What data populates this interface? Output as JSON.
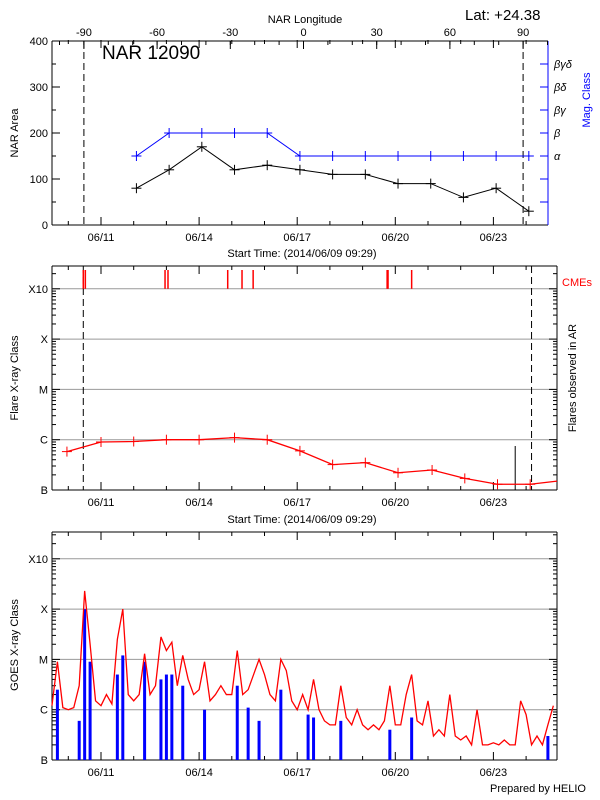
{
  "header": {
    "lat_label": "Lat: +24.38",
    "region_label": "NAR 12090"
  },
  "footer": {
    "credit": "Prepared by HELIO"
  },
  "colors": {
    "area": "#000000",
    "mag_class": "#0000ff",
    "flares": "#ff0000",
    "cme": "#ff0000",
    "goes_long": "#ff0000",
    "goes_short": "#0000ff",
    "grid": "#999999"
  },
  "date_ticks": [
    "06/11",
    "06/14",
    "06/17",
    "06/20",
    "06/23"
  ],
  "chart_data": [
    {
      "type": "line",
      "xlabel": "Start Time: (2014/06/09 09:29)",
      "ylabel": "NAR Area",
      "y2label": "Mag. Class",
      "top_xlabel": "NAR Longitude",
      "top_ticks": [
        -90,
        -60,
        -30,
        0,
        30,
        60,
        90
      ],
      "yticks": [
        0,
        100,
        200,
        300,
        400
      ],
      "ylim": [
        0,
        400
      ],
      "xlim": [
        "2014-06-09T12:00",
        "2014-06-24T16:00"
      ],
      "mag_classes": [
        "α",
        "β",
        "βγ",
        "βδ",
        "βγδ"
      ],
      "limb_markers_longitude": [
        -90,
        90
      ],
      "series": [
        {
          "name": "NAR Area",
          "x": [
            "2014-06-12T02:00",
            "2014-06-13T02:00",
            "2014-06-14T02:00",
            "2014-06-15T02:00",
            "2014-06-16T02:00",
            "2014-06-17T02:00",
            "2014-06-18T02:00",
            "2014-06-19T02:00",
            "2014-06-20T02:00",
            "2014-06-21T02:00",
            "2014-06-22T02:00",
            "2014-06-23T02:00",
            "2014-06-24T02:00"
          ],
          "values": [
            80,
            120,
            170,
            120,
            130,
            120,
            110,
            110,
            90,
            90,
            60,
            80,
            30
          ]
        },
        {
          "name": "Mag. Class",
          "x": [
            "2014-06-12T02:00",
            "2014-06-13T02:00",
            "2014-06-14T02:00",
            "2014-06-15T02:00",
            "2014-06-16T02:00",
            "2014-06-17T02:00",
            "2014-06-18T02:00",
            "2014-06-19T02:00",
            "2014-06-20T02:00",
            "2014-06-21T02:00",
            "2014-06-22T02:00",
            "2014-06-23T02:00",
            "2014-06-24T02:00"
          ],
          "values": [
            "α",
            "β",
            "β",
            "β",
            "β",
            "α",
            "α",
            "α",
            "α",
            "α",
            "α",
            "α",
            "α"
          ]
        }
      ]
    },
    {
      "type": "line",
      "xlabel": "Start Time: (2014/06/09 09:29)",
      "ylabel": "Flare X-ray Class",
      "y2label": "Flares observed in AR",
      "cme_label": "CMEs",
      "yticks": [
        "B",
        "C",
        "M",
        "X",
        "X10"
      ],
      "yscale": "log",
      "xlim": [
        "2014-06-09T12:00",
        "2014-06-24T22:30"
      ],
      "limb_markers": [
        "2014-06-10T11:00",
        "2014-06-24T04:00"
      ],
      "flares": {
        "x": [
          "2014-06-09T23:00",
          "2014-06-11T00:00",
          "2014-06-12T00:00",
          "2014-06-13T00:00",
          "2014-06-14T00:00",
          "2014-06-15T02:00",
          "2014-06-16T02:00",
          "2014-06-17T02:00",
          "2014-06-18T02:00",
          "2014-06-19T02:00",
          "2014-06-20T02:00",
          "2014-06-21T03:00",
          "2014-06-22T03:00",
          "2014-06-23T03:00",
          "2014-06-24T03:00",
          "2014-06-25T03:00"
        ],
        "values": [
          "B5.8",
          "B9.0",
          "B9.2",
          "C1.0",
          "C1.0",
          "C1.1",
          "C1.0",
          "B6.0",
          "B3.2",
          "B3.5",
          "B2.2",
          "B2.5",
          "B1.7",
          "B1.3",
          "B1.3",
          "B1.5"
        ]
      },
      "flare_events": [
        {
          "x": "2014-06-23T16:00",
          "value": "B7.5"
        }
      ],
      "cmes": [
        "2014-06-10T11:00",
        "2014-06-10T12:30",
        "2014-06-12T23:00",
        "2014-06-13T01:10",
        "2014-06-14T21:00",
        "2014-06-15T07:30",
        "2014-06-15T15:40",
        "2014-06-19T18:00",
        "2014-06-19T18:40",
        "2014-06-20T12:00"
      ]
    },
    {
      "type": "line",
      "ylabel": "GOES X-ray Class",
      "yticks": [
        "B",
        "C",
        "M",
        "X",
        "X10"
      ],
      "yscale": "log",
      "xlim": [
        "2014-06-09T12:00",
        "2014-06-24T22:30"
      ],
      "long_channel": {
        "start": "2014-06-09T12:00",
        "step_hours": 4,
        "values": [
          "C1.2",
          "M0.9",
          "C1.1",
          "C1.0",
          "C1.1",
          "C3.0",
          "X2.3",
          "M2",
          "C1.5",
          "C1.2",
          "C2",
          "C1.3",
          "M2.5",
          "X1.0",
          "C2",
          "C1.5",
          "C2",
          "M1.3",
          "C2",
          "C3",
          "M2.8",
          "M1.5",
          "M2.2",
          "C3",
          "M1.2",
          "C4",
          "C2",
          "C2.5",
          "M0.9",
          "C1.5",
          "C2",
          "C3",
          "C2",
          "C2",
          "M1.5",
          "C2",
          "C2.5",
          "C5",
          "M1.0",
          "C5",
          "C2",
          "C1.5",
          "M1.0",
          "C6",
          "C1.5",
          "C1",
          "C2",
          "C1",
          "C4",
          "C1",
          "B6",
          "B5",
          "B5",
          "C3",
          "B7",
          "B5",
          "C1.0",
          "B5",
          "B4",
          "B5",
          "B4",
          "B6",
          "C3",
          "B5",
          "B5",
          "C2",
          "C5",
          "B6",
          "B5",
          "C1.5",
          "B3",
          "B4",
          "B3",
          "C2",
          "B3",
          "B2.5",
          "B3",
          "B2",
          "C1",
          "B2",
          "B2",
          "B2.2",
          "B2",
          "B2.5",
          "B2",
          "B2",
          "C1.5",
          "B8",
          "B2",
          "B3",
          "B2",
          "B5",
          "C1.2"
        ]
      },
      "short_channel_peaks": [
        {
          "x": "2014-06-09T16:00",
          "value": "C2.5"
        },
        {
          "x": "2014-06-10T08:00",
          "value": "B6"
        },
        {
          "x": "2014-06-10T12:00",
          "value": "X1.0"
        },
        {
          "x": "2014-06-10T16:00",
          "value": "M0.9"
        },
        {
          "x": "2014-06-11T12:00",
          "value": "C5"
        },
        {
          "x": "2014-06-11T16:00",
          "value": "M1.2"
        },
        {
          "x": "2014-06-12T08:00",
          "value": "M0.9"
        },
        {
          "x": "2014-06-12T20:00",
          "value": "C4"
        },
        {
          "x": "2014-06-13T00:00",
          "value": "C5"
        },
        {
          "x": "2014-06-13T04:00",
          "value": "M0.5"
        },
        {
          "x": "2014-06-13T12:00",
          "value": "C3"
        },
        {
          "x": "2014-06-14T04:00",
          "value": "C1.0"
        },
        {
          "x": "2014-06-15T04:00",
          "value": "C3"
        },
        {
          "x": "2014-06-15T12:00",
          "value": "C1.1"
        },
        {
          "x": "2014-06-15T20:00",
          "value": "B6"
        },
        {
          "x": "2014-06-16T12:00",
          "value": "C2.5"
        },
        {
          "x": "2014-06-17T08:00",
          "value": "B8"
        },
        {
          "x": "2014-06-17T12:00",
          "value": "B7"
        },
        {
          "x": "2014-06-18T08:00",
          "value": "B6"
        },
        {
          "x": "2014-06-19T20:00",
          "value": "B4"
        },
        {
          "x": "2014-06-20T12:00",
          "value": "B7"
        },
        {
          "x": "2014-06-24T16:00",
          "value": "B3"
        }
      ]
    }
  ]
}
